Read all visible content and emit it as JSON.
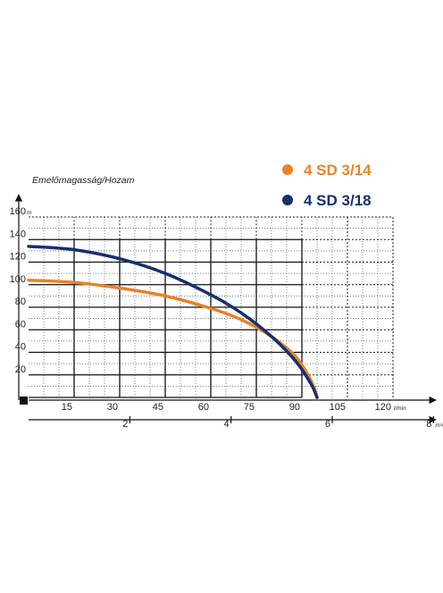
{
  "chart_data": {
    "type": "line",
    "title": "",
    "subtitle": "Emelőmagasság/Hozam",
    "y_unit": "m",
    "x_unit": "l/min",
    "x2_unit": "m³/h",
    "ylim": [
      0,
      160
    ],
    "xlim": [
      0,
      120
    ],
    "y_ticks": [
      20,
      40,
      60,
      80,
      100,
      120,
      140,
      160
    ],
    "x_ticks": [
      15,
      30,
      45,
      60,
      75,
      90,
      105,
      120
    ],
    "x2_ticks": [
      2,
      4,
      6,
      8
    ],
    "grid": true,
    "legend_position": "top-right",
    "series": [
      {
        "name": "4 SD 3/14",
        "color": "#e8832a",
        "x": [
          0,
          15,
          30,
          45,
          60,
          70,
          80,
          88,
          93,
          95
        ],
        "y": [
          104,
          102,
          97,
          90,
          79,
          69,
          54,
          36,
          15,
          0
        ]
      },
      {
        "name": "4 SD 3/18",
        "color": "#15306f",
        "x": [
          0,
          15,
          30,
          45,
          60,
          70,
          80,
          88,
          93,
          95
        ],
        "y": [
          134,
          131,
          123,
          110,
          91,
          75,
          54,
          32,
          12,
          0
        ]
      }
    ]
  }
}
